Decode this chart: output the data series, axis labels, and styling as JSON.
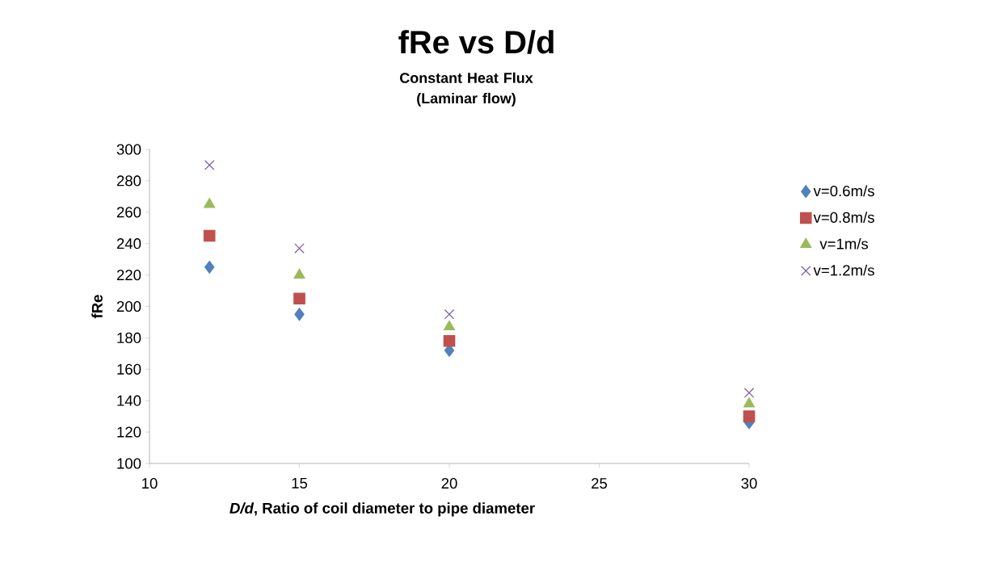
{
  "chart_data": {
    "type": "scatter",
    "title": "fRe vs D/d",
    "subtitle": "Constant Heat Flux (Laminar flow)",
    "xlabel": "*D/d*, Ratio of coil diameter to pipe diameter",
    "ylabel": "fRe",
    "x": [
      12,
      15,
      20,
      30
    ],
    "series": [
      {
        "name": "v=0.6m/s",
        "color": "#4f81bd",
        "marker": "diamond",
        "values": [
          225,
          195,
          172,
          126
        ]
      },
      {
        "name": "v=0.8m/s",
        "color": "#c0504d",
        "marker": "square",
        "values": [
          245,
          205,
          178,
          130
        ]
      },
      {
        "name": "v=1m/s",
        "color": "#9bbb59",
        "marker": "triangle",
        "values": [
          265,
          220,
          187,
          138
        ]
      },
      {
        "name": "v=1.2m/s",
        "color": "#8064a2",
        "marker": "cross",
        "values": [
          290,
          237,
          195,
          145
        ]
      }
    ],
    "xlim": [
      10,
      30
    ],
    "xticks": [
      10,
      15,
      20,
      25,
      30
    ],
    "ylim": [
      100,
      300
    ],
    "yticks": [
      100,
      120,
      140,
      160,
      180,
      200,
      220,
      240,
      260,
      280,
      300
    ],
    "grid": false,
    "legend": "right"
  }
}
